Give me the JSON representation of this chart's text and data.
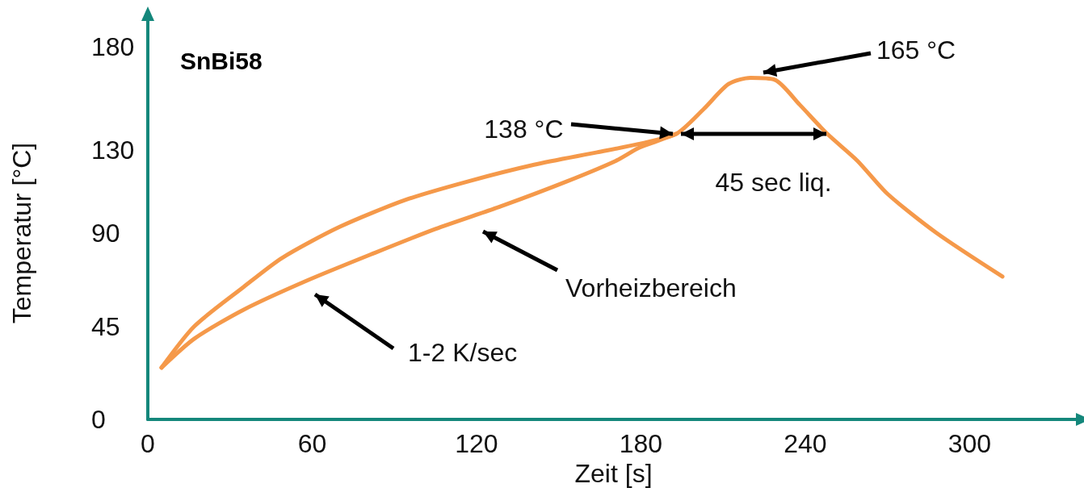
{
  "chart_data": {
    "type": "line",
    "title": "SnBi58",
    "xlabel": "Zeit [s]",
    "ylabel": "Temperatur [°C]",
    "xlim": [
      0,
      340
    ],
    "xticks": [
      0,
      60,
      120,
      180,
      240,
      300
    ],
    "ylim": [
      0,
      180
    ],
    "yticks": [
      0,
      45,
      90,
      130,
      180
    ],
    "grid": false,
    "marker": "none",
    "line_style": "solid",
    "series": [
      {
        "color": "#f5994a",
        "x": [
          5,
          17,
          35,
          49,
          70,
          94,
          117,
          141,
          164,
          179,
          193,
          203,
          212,
          220,
          229,
          238,
          248,
          259,
          270,
          288,
          312
        ],
        "values": [
          25,
          45,
          64,
          78,
          93,
          106,
          115,
          123,
          129,
          133,
          138,
          150,
          162,
          165,
          164,
          152,
          138,
          125,
          109,
          90,
          69
        ]
      },
      {
        "color": "#f5994a",
        "x": [
          5,
          17,
          35,
          58,
          82,
          105,
          129,
          153,
          171,
          179,
          185,
          193
        ],
        "values": [
          25,
          39,
          53,
          67,
          80,
          92,
          103,
          115,
          125,
          131,
          134,
          138
        ]
      }
    ],
    "annotations": [
      {
        "text": "138 °C",
        "x": 193,
        "y": 138
      },
      "165 °C",
      "45 sec liq.",
      "Vorheizbereich",
      "1-2 K/sec"
    ]
  }
}
